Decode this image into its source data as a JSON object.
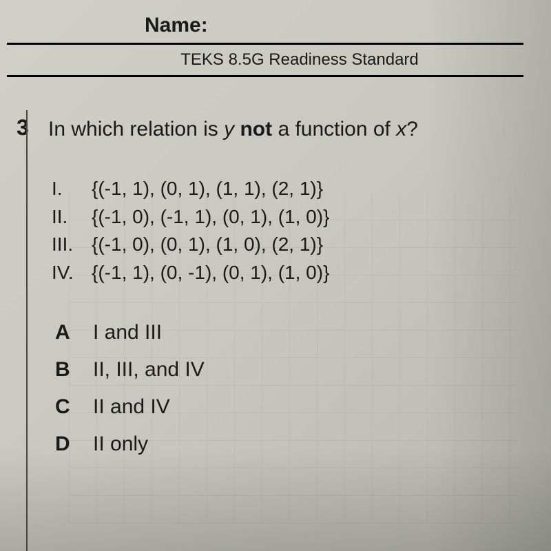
{
  "header": {
    "name_label": "Name:",
    "standard": "TEKS 8.5G Readiness Standard"
  },
  "question": {
    "number": "3",
    "text_part1": "In which relation is ",
    "text_y": "y",
    "text_part2": " ",
    "text_not": "not",
    "text_part3": " a function of ",
    "text_x": "x",
    "text_part4": "?"
  },
  "relations": [
    {
      "roman": "I.",
      "set": "{(-1, 1), (0, 1), (1, 1), (2, 1)}"
    },
    {
      "roman": "II.",
      "set": "{(-1, 0), (-1, 1), (0, 1), (1, 0)}"
    },
    {
      "roman": "III.",
      "set": "{(-1, 0), (0, 1), (1, 0), (2, 1)}"
    },
    {
      "roman": "IV.",
      "set": "{(-1, 1), (0, -1), (0, 1), (1, 0)}"
    }
  ],
  "answers": [
    {
      "letter": "A",
      "text": "I and III"
    },
    {
      "letter": "B",
      "text": "II, III, and IV"
    },
    {
      "letter": "C",
      "text": "II and IV"
    },
    {
      "letter": "D",
      "text": "II only"
    }
  ],
  "styling": {
    "background_color": "#c8c8c0",
    "text_color": "#1a1a1a",
    "line_color": "#000000",
    "question_fontsize": 30,
    "relation_fontsize": 28,
    "answer_fontsize": 30,
    "grid_opacity": 0.08
  }
}
